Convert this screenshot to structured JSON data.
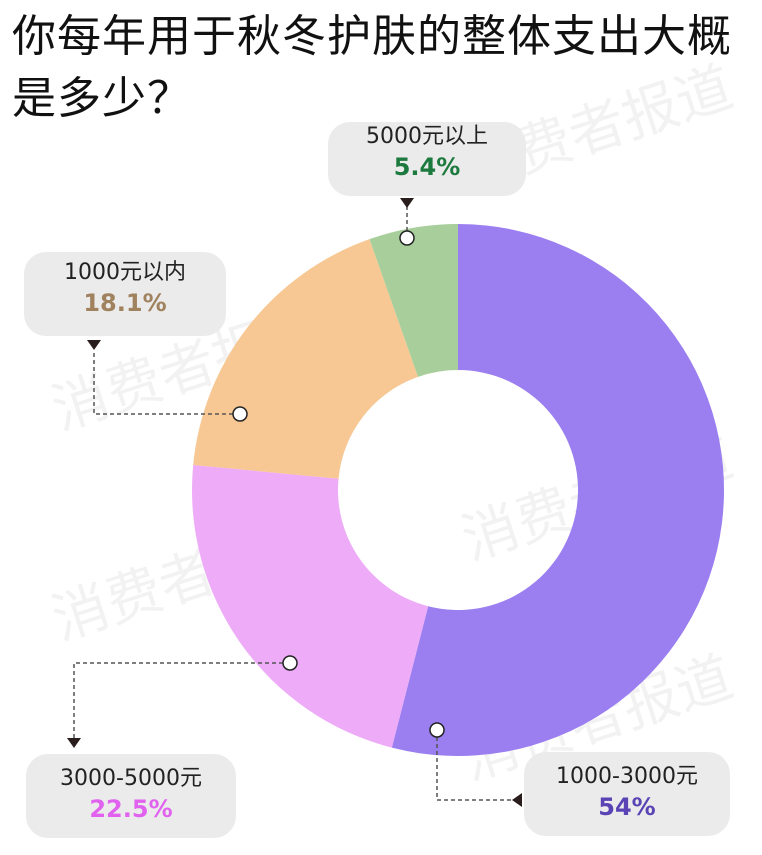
{
  "title": "你每年用于秋冬护肤的整体支出大概是多少？",
  "watermark_text": "消费者报道",
  "colors": {
    "leader": "#555555",
    "callout_bg": "#ebebeb",
    "background": "#ffffff"
  },
  "chart_data": {
    "type": "pie",
    "donut": true,
    "categories": [
      "1000-3000元",
      "3000-5000元",
      "1000元以内",
      "5000元以上"
    ],
    "values": [
      54,
      22.5,
      18.1,
      5.4
    ],
    "value_labels": [
      "54%",
      "22.5%",
      "18.1%",
      "5.4%"
    ],
    "colors": [
      "#9b7eef",
      "#edabf8",
      "#f7c894",
      "#a8cf9b"
    ],
    "label_colors": [
      "#5a43b5",
      "#e062ee",
      "#a0825e",
      "#1d7a3e"
    ],
    "start_angle_deg": 0,
    "direction": "clockwise"
  }
}
